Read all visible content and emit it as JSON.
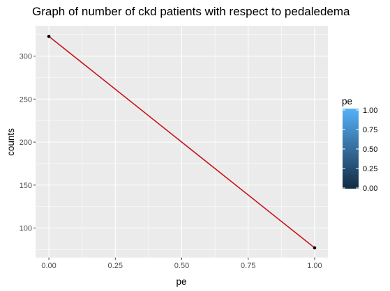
{
  "chart_data": {
    "type": "line",
    "title": "Graph of number of ckd patients with respect to pedaledema",
    "xlabel": "pe",
    "ylabel": "counts",
    "x": [
      0,
      1
    ],
    "y": [
      323,
      77
    ],
    "xlim": [
      -0.05,
      1.05
    ],
    "ylim": [
      65.7,
      335.3
    ],
    "x_ticks": [
      0.0,
      0.25,
      0.5,
      0.75,
      1.0
    ],
    "x_tick_labels": [
      "0.00",
      "0.25",
      "0.50",
      "0.75",
      "1.00"
    ],
    "y_ticks": [
      100,
      150,
      200,
      250,
      300
    ],
    "y_tick_labels": [
      "100",
      "150",
      "200",
      "250",
      "300"
    ],
    "grid": true,
    "line_color": "#c4161c",
    "point_color": "#000000",
    "panel_background": "#ebebeb",
    "legend": {
      "title": "pe",
      "placement": "right",
      "type": "colorbar",
      "low_color": "#132b43",
      "high_color": "#56b1f7",
      "range": [
        0,
        1
      ],
      "ticks": [
        0.0,
        0.25,
        0.5,
        0.75,
        1.0
      ],
      "tick_labels": [
        "0.00",
        "0.25",
        "0.50",
        "0.75",
        "1.00"
      ]
    }
  }
}
